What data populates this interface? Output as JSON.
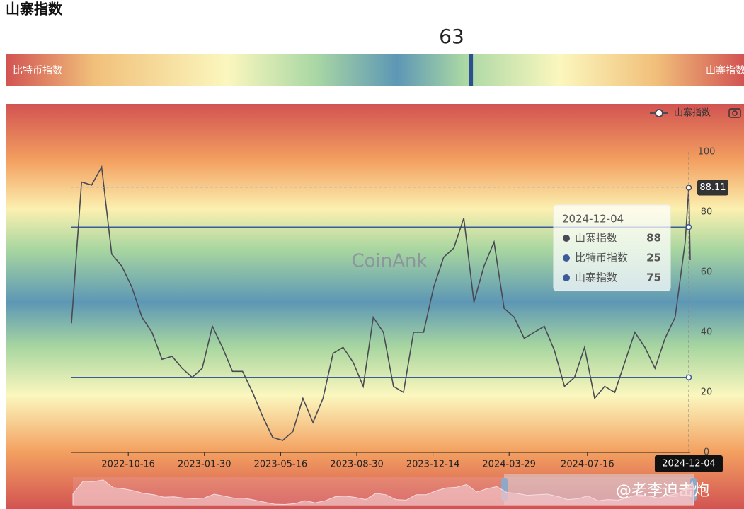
{
  "header": {
    "title": "山寨指数"
  },
  "gauge": {
    "value": 63,
    "range": [
      0,
      100
    ],
    "left_label": "比特币指数",
    "right_label": "山寨指数"
  },
  "chart_data": {
    "type": "line",
    "watermark": "CoinAnk",
    "credit": "@老李迫击炮",
    "x": [
      "2022-07-29",
      "2022-08-12",
      "2022-08-26",
      "2022-09-09",
      "2022-09-23",
      "2022-10-07",
      "2022-10-21",
      "2022-11-04",
      "2022-11-18",
      "2022-12-02",
      "2022-12-16",
      "2022-12-30",
      "2023-01-13",
      "2023-01-27",
      "2023-02-10",
      "2023-02-24",
      "2023-03-10",
      "2023-03-24",
      "2023-04-07",
      "2023-04-21",
      "2023-05-05",
      "2023-05-19",
      "2023-06-02",
      "2023-06-16",
      "2023-06-30",
      "2023-07-14",
      "2023-07-28",
      "2023-08-11",
      "2023-08-25",
      "2023-09-08",
      "2023-09-22",
      "2023-10-06",
      "2023-10-20",
      "2023-11-03",
      "2023-11-17",
      "2023-12-01",
      "2023-12-15",
      "2023-12-29",
      "2024-01-12",
      "2024-01-26",
      "2024-02-09",
      "2024-02-23",
      "2024-03-08",
      "2024-03-22",
      "2024-04-05",
      "2024-04-19",
      "2024-05-03",
      "2024-05-17",
      "2024-05-31",
      "2024-06-14",
      "2024-06-28",
      "2024-07-12",
      "2024-07-26",
      "2024-08-09",
      "2024-08-23",
      "2024-09-06",
      "2024-09-20",
      "2024-10-04",
      "2024-10-18",
      "2024-11-01",
      "2024-11-15",
      "2024-11-29",
      "2024-12-04",
      "2024-12-06"
    ],
    "series": [
      {
        "name": "山寨指数",
        "color": "#4a4a55",
        "values": [
          43,
          90,
          89,
          95,
          66,
          62,
          55,
          45,
          40,
          31,
          32,
          28,
          25,
          28,
          42,
          35,
          27,
          27,
          20,
          12,
          5,
          4,
          7,
          18,
          10,
          18,
          33,
          35,
          30,
          22,
          45,
          40,
          22,
          20,
          40,
          40,
          55,
          65,
          68,
          78,
          50,
          62,
          70,
          48,
          45,
          38,
          40,
          42,
          34,
          22,
          25,
          35,
          18,
          22,
          20,
          30,
          40,
          35,
          28,
          38,
          45,
          70,
          88.11,
          64
        ]
      }
    ],
    "thresholds": [
      {
        "name": "比特币指数",
        "value": 25,
        "color": "#3d5a99"
      },
      {
        "name": "山寨指数",
        "value": 75,
        "color": "#3d5a99"
      }
    ],
    "xlim": [
      "2022-07-29",
      "2024-12-06"
    ],
    "xticks": [
      "2022-10-16",
      "2023-01-30",
      "2023-05-16",
      "2023-08-30",
      "2023-12-14",
      "2024-03-29",
      "2024-07-16"
    ],
    "ylim": [
      0,
      100
    ],
    "yticks": [
      0,
      20,
      40,
      60,
      80,
      100
    ],
    "pointer": {
      "date": "2024-12-04",
      "label": "88.11"
    },
    "tooltip": {
      "date": "2024-12-04",
      "items": [
        {
          "name": "山寨指数",
          "value": 88,
          "color": "#4a4a55"
        },
        {
          "name": "比特币指数",
          "value": 25,
          "color": "#3d5a99"
        },
        {
          "name": "山寨指数",
          "value": 75,
          "color": "#3d5a99"
        }
      ]
    }
  }
}
